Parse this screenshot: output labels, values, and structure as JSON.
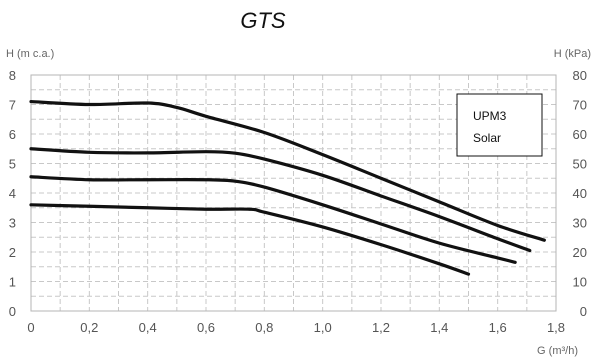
{
  "chart_data": {
    "type": "line",
    "title": "GTS",
    "y_left_label": "H (m c.a.)",
    "y_right_label": "H (kPa)",
    "xlabel": "G (m³/h)",
    "xlim": [
      0,
      1.8
    ],
    "ylim": [
      0,
      8
    ],
    "y_right_lim": [
      0,
      80
    ],
    "x_ticks": [
      0,
      0.2,
      0.4,
      0.6,
      0.8,
      1.0,
      1.2,
      1.4,
      1.6,
      1.8
    ],
    "x_tick_labels": [
      "0",
      "0,2",
      "0,4",
      "0,6",
      "0,8",
      "1,0",
      "1,2",
      "1,4",
      "1,6",
      "1,8"
    ],
    "y_left_ticks": [
      0,
      1,
      2,
      3,
      4,
      5,
      6,
      7,
      8
    ],
    "y_left_tick_labels": [
      "0",
      "1",
      "2",
      "3",
      "4",
      "5",
      "6",
      "7",
      "8"
    ],
    "y_right_ticks": [
      0,
      10,
      20,
      30,
      40,
      50,
      60,
      70,
      80
    ],
    "y_right_tick_labels": [
      "0",
      "10",
      "20",
      "30",
      "40",
      "50",
      "60",
      "70",
      "80"
    ],
    "grid": true,
    "legend": {
      "lines": [
        "UPM3",
        "Solar"
      ],
      "position": "top-right"
    },
    "series": [
      {
        "x": [
          0,
          0.2,
          0.4,
          0.5,
          0.6,
          0.8,
          1.0,
          1.2,
          1.4,
          1.6,
          1.76
        ],
        "y": [
          7.1,
          7.0,
          7.05,
          6.9,
          6.6,
          6.05,
          5.3,
          4.5,
          3.7,
          2.9,
          2.4
        ]
      },
      {
        "x": [
          0,
          0.2,
          0.4,
          0.6,
          0.7,
          0.8,
          1.0,
          1.2,
          1.4,
          1.6,
          1.71
        ],
        "y": [
          5.5,
          5.38,
          5.36,
          5.4,
          5.35,
          5.15,
          4.6,
          3.9,
          3.2,
          2.45,
          2.05
        ]
      },
      {
        "x": [
          0,
          0.2,
          0.4,
          0.6,
          0.7,
          0.8,
          1.0,
          1.2,
          1.4,
          1.6,
          1.66
        ],
        "y": [
          4.55,
          4.45,
          4.45,
          4.45,
          4.4,
          4.2,
          3.6,
          2.95,
          2.3,
          1.8,
          1.65
        ]
      },
      {
        "x": [
          0,
          0.2,
          0.4,
          0.6,
          0.75,
          0.8,
          1.0,
          1.2,
          1.4,
          1.5
        ],
        "y": [
          3.6,
          3.55,
          3.5,
          3.45,
          3.45,
          3.35,
          2.85,
          2.25,
          1.6,
          1.25
        ]
      }
    ],
    "line_color": "#111111"
  }
}
